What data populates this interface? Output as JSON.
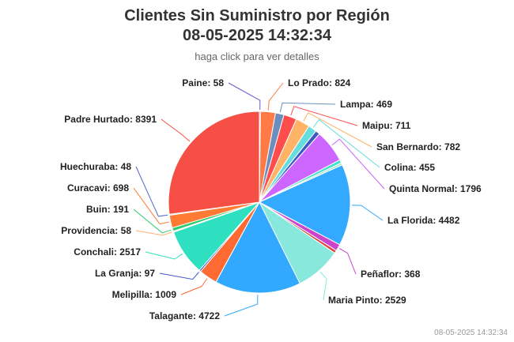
{
  "chart_data": {
    "type": "pie",
    "title": "Clientes Sin Suministro por Región",
    "subtitle_time": "08-05-2025 14:32:34",
    "subtitle": "haga click para ver detalles",
    "footer": "08-05-2025 14:32:34",
    "slices": [
      {
        "label": "Paine",
        "value": 58,
        "color": "#6a5acd"
      },
      {
        "label": "Lo Prado",
        "value": 824,
        "color": "#ff7a45"
      },
      {
        "label": "Lampa",
        "value": 469,
        "color": "#6c8ebf"
      },
      {
        "label": "Maipu",
        "value": 711,
        "color": "#ff4d4d"
      },
      {
        "label": "San Bernardo",
        "value": 782,
        "color": "#ffb366"
      },
      {
        "label": "Colina",
        "value": 455,
        "color": "#66dddd"
      },
      {
        "label": "",
        "value": 250,
        "color": "#3a5bbf"
      },
      {
        "label": "Quinta Normal",
        "value": 1796,
        "color": "#cc66ff"
      },
      {
        "label": "",
        "value": 180,
        "color": "#40e0d0"
      },
      {
        "label": "",
        "value": 120,
        "color": "#a0e8c8"
      },
      {
        "label": "La Florida",
        "value": 4482,
        "color": "#33aaff"
      },
      {
        "label": "Peñaflor",
        "value": 368,
        "color": "#cc44cc"
      },
      {
        "label": "",
        "value": 160,
        "color": "#e04040"
      },
      {
        "label": "Maria Pinto",
        "value": 2529,
        "color": "#88e8dc"
      },
      {
        "label": "Talagante",
        "value": 4722,
        "color": "#33a8ff"
      },
      {
        "label": "Melipilla",
        "value": 1009,
        "color": "#ff6a33"
      },
      {
        "label": "La Granja",
        "value": 97,
        "color": "#4455cc"
      },
      {
        "label": "Conchali",
        "value": 2517,
        "color": "#2ee0c0"
      },
      {
        "label": "Providencia",
        "value": 58,
        "color": "#ffb077"
      },
      {
        "label": "Buin",
        "value": 191,
        "color": "#2ecc71"
      },
      {
        "label": "Curacavi",
        "value": 698,
        "color": "#ff7a33"
      },
      {
        "label": "Huechuraba",
        "value": 48,
        "color": "#5566cc"
      },
      {
        "label": "Padre Hurtado",
        "value": 8391,
        "color": "#f54f46"
      }
    ]
  }
}
